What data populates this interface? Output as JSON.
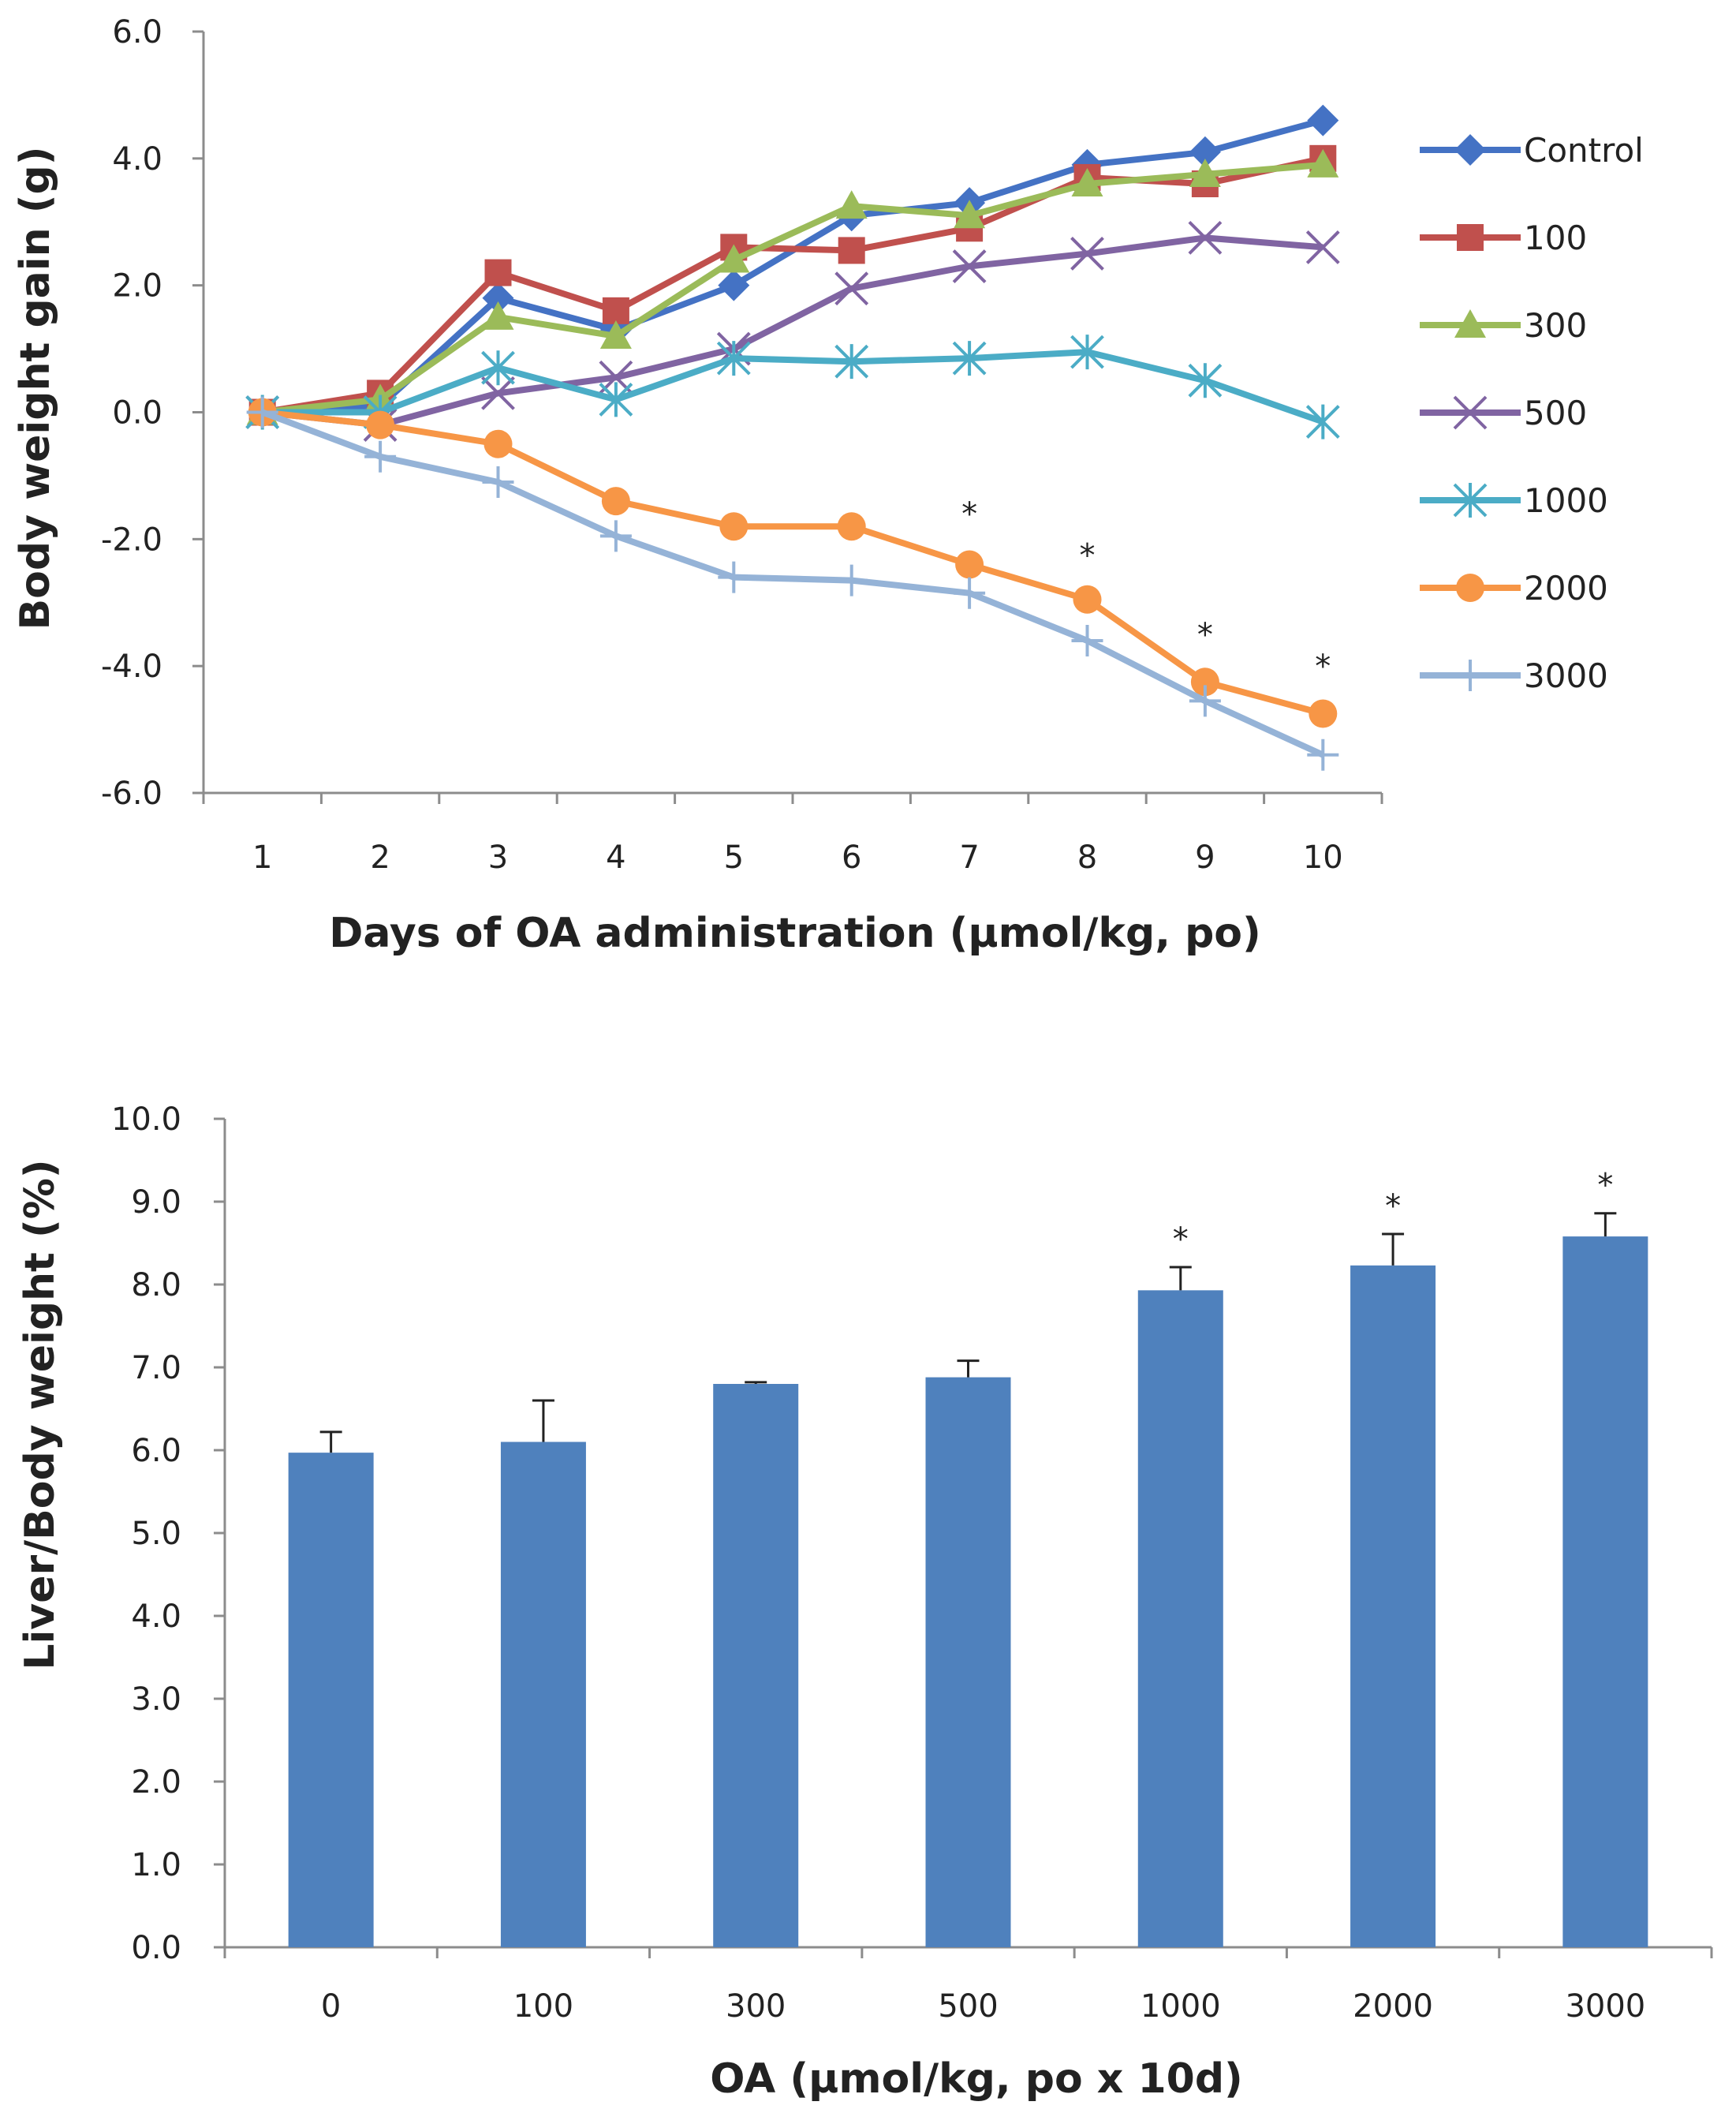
{
  "chart_data": [
    {
      "type": "line",
      "title": "",
      "xlabel": "Days of OA administration (μmol/kg, po)",
      "ylabel": "Body weight gain (g)",
      "ylim": [
        -6,
        6
      ],
      "yticks": [
        "6.0",
        "4.0",
        "2.0",
        "0.0",
        "-2.0",
        "-4.0",
        "-6.0"
      ],
      "ytick_values": [
        6,
        4,
        2,
        0,
        -2,
        -4,
        -6
      ],
      "categories": [
        "1",
        "2",
        "3",
        "4",
        "5",
        "6",
        "7",
        "8",
        "9",
        "10"
      ],
      "legend_position": "right",
      "series": [
        {
          "name": "Control",
          "color": "#4472C4",
          "marker": "diamond",
          "values": [
            0.0,
            0.1,
            1.8,
            1.3,
            2.0,
            3.1,
            3.3,
            3.9,
            4.1,
            4.6
          ]
        },
        {
          "name": "100",
          "color": "#C0504D",
          "marker": "square",
          "values": [
            0.0,
            0.3,
            2.2,
            1.6,
            2.6,
            2.55,
            2.9,
            3.7,
            3.6,
            4.0
          ]
        },
        {
          "name": "300",
          "color": "#9BBB59",
          "marker": "triangle",
          "values": [
            0.0,
            0.2,
            1.5,
            1.2,
            2.4,
            3.25,
            3.1,
            3.6,
            3.75,
            3.9
          ]
        },
        {
          "name": "500",
          "color": "#8064A2",
          "marker": "x",
          "values": [
            0.0,
            -0.2,
            0.3,
            0.55,
            1.0,
            1.95,
            2.3,
            2.5,
            2.75,
            2.6
          ]
        },
        {
          "name": "1000",
          "color": "#4BACC6",
          "marker": "asterisk",
          "values": [
            0.0,
            0.0,
            0.7,
            0.2,
            0.85,
            0.8,
            0.85,
            0.95,
            0.5,
            -0.15
          ]
        },
        {
          "name": "2000",
          "color": "#F79646",
          "marker": "circle",
          "values": [
            0.0,
            -0.2,
            -0.5,
            -1.4,
            -1.8,
            -1.8,
            -2.4,
            -2.95,
            -4.25,
            -4.75
          ]
        },
        {
          "name": "3000",
          "color": "#95B3D7",
          "marker": "plus",
          "values": [
            0.0,
            -0.7,
            -1.1,
            -1.95,
            -2.6,
            -2.65,
            -2.85,
            -3.6,
            -4.55,
            -5.4
          ]
        }
      ],
      "annotations": [
        {
          "text": "*",
          "category": "7",
          "y": -1.6
        },
        {
          "text": "*",
          "category": "8",
          "y": -2.25
        },
        {
          "text": "*",
          "category": "9",
          "y": -3.5
        },
        {
          "text": "*",
          "category": "10",
          "y": -4.0
        }
      ]
    },
    {
      "type": "bar",
      "title": "",
      "xlabel": "OA (μmol/kg, po x 10d)",
      "ylabel": "Liver/Body weight (%)",
      "ylim": [
        0,
        10
      ],
      "yticks": [
        "10.0",
        "9.0",
        "8.0",
        "7.0",
        "6.0",
        "5.0",
        "4.0",
        "3.0",
        "2.0",
        "1.0",
        "0.0"
      ],
      "ytick_values": [
        10,
        9,
        8,
        7,
        6,
        5,
        4,
        3,
        2,
        1,
        0
      ],
      "categories": [
        "0",
        "100",
        "300",
        "500",
        "1000",
        "2000",
        "3000"
      ],
      "bar_color": "#4F81BD",
      "values": [
        5.97,
        6.1,
        6.8,
        6.88,
        7.93,
        8.23,
        8.58
      ],
      "error_upper": [
        0.25,
        0.5,
        0.02,
        0.2,
        0.28,
        0.38,
        0.28
      ],
      "significance": [
        "",
        "",
        "",
        "",
        "*",
        "*",
        "*"
      ]
    }
  ]
}
